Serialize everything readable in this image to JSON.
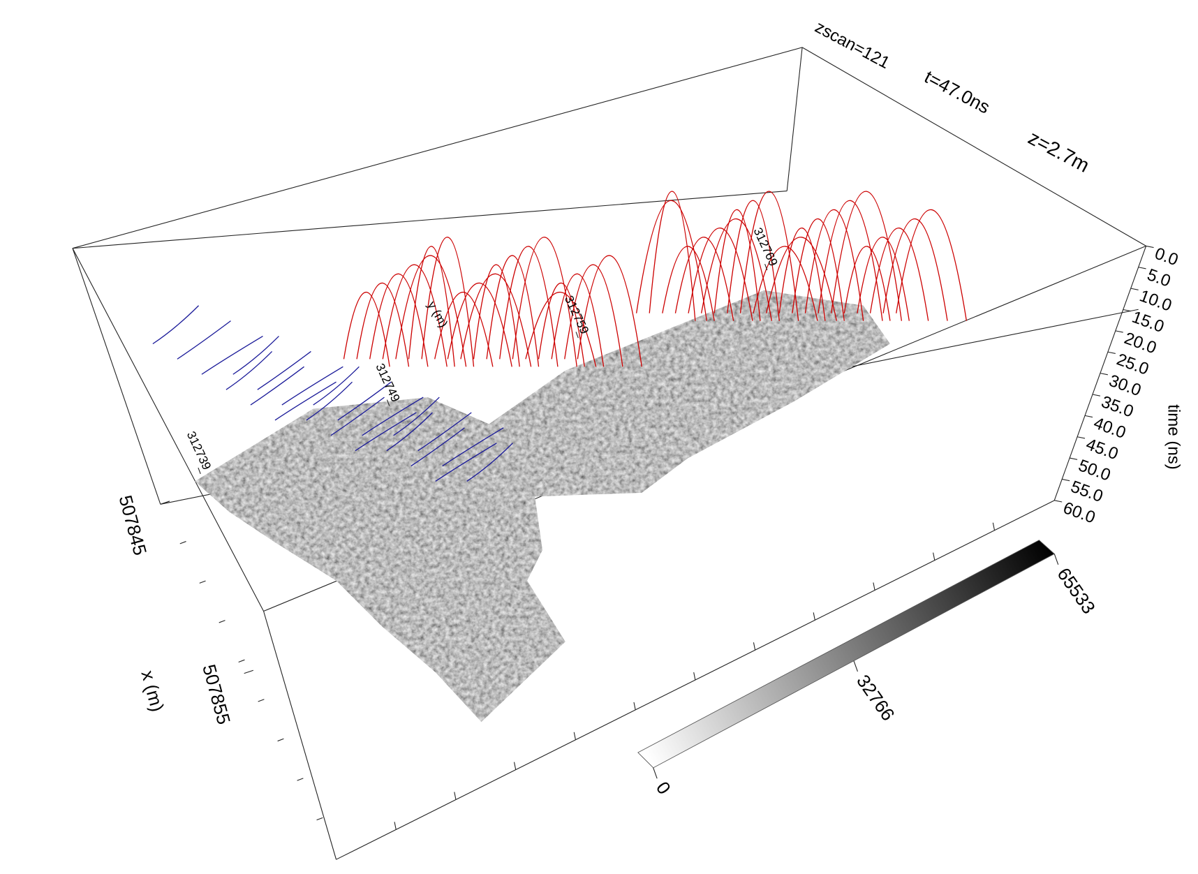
{
  "chart_data": {
    "type": "gpr3d",
    "annotations": [
      "zscan=121",
      "t=47.0ns",
      "z=2.7m"
    ],
    "x_label": "x (m)",
    "xlim": [
      507845,
      507866
    ],
    "xticks": [
      507845,
      507855
    ],
    "y_label": "y (m)",
    "ylim": [
      312737,
      312773
    ],
    "yticks": [
      312739,
      312749,
      312759,
      312769
    ],
    "z_label": "time (ns)",
    "zlim": [
      0,
      60
    ],
    "zticks": [
      {
        "value": 0,
        "label": "0.0"
      },
      {
        "value": 5,
        "label": "5.0"
      },
      {
        "value": 10,
        "label": "10.0"
      },
      {
        "value": 15,
        "label": "15.0"
      },
      {
        "value": 20,
        "label": "20.0"
      },
      {
        "value": 25,
        "label": "25.0"
      },
      {
        "value": 30,
        "label": "30.0"
      },
      {
        "value": 35,
        "label": "35.0"
      },
      {
        "value": 40,
        "label": "40.0"
      },
      {
        "value": 45,
        "label": "45.0"
      },
      {
        "value": 50,
        "label": "50.0"
      },
      {
        "value": 55,
        "label": "55.0"
      },
      {
        "value": 60,
        "label": "60.0"
      }
    ],
    "colorbar": {
      "lim": [
        0,
        65533
      ],
      "ticks": [
        0,
        32766,
        65533
      ],
      "colors": [
        "#ffffff",
        "#000000"
      ]
    },
    "trace_colors": [
      "#1a1a99",
      "#cc0000"
    ]
  }
}
